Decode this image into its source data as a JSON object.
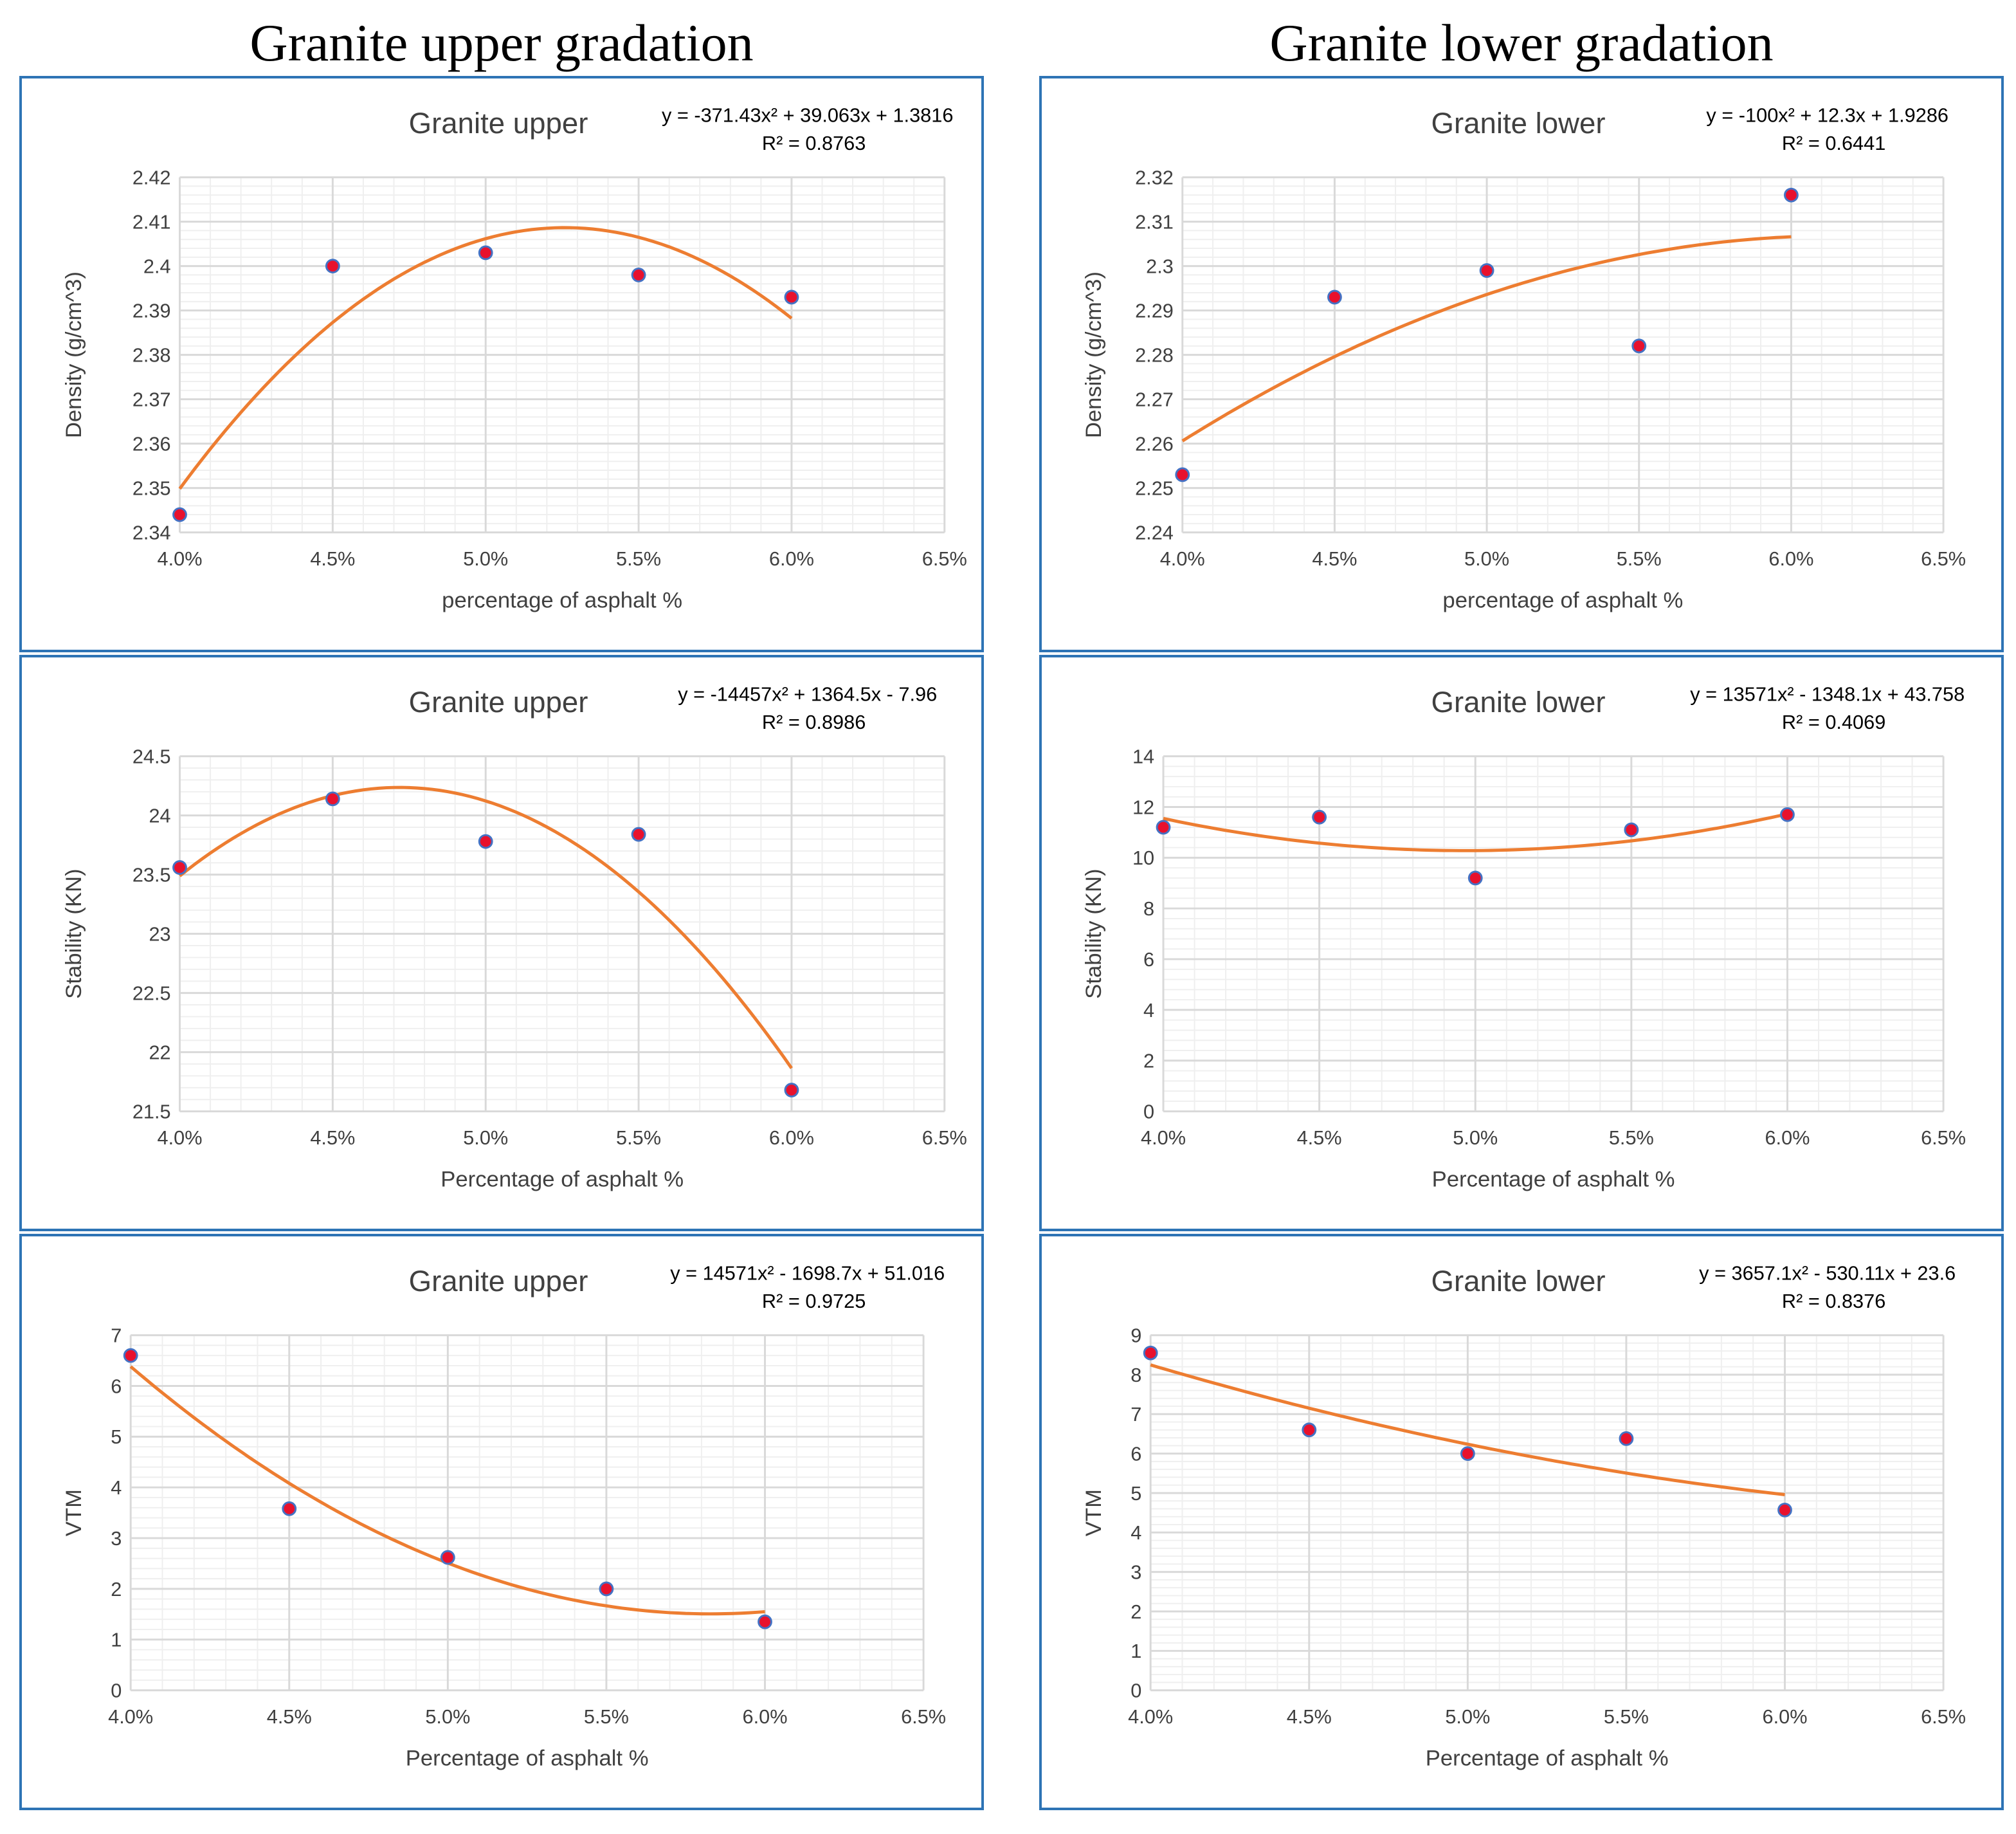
{
  "column_titles": {
    "left": "Granite upper gradation",
    "right": "Granite lower gradation"
  },
  "colors": {
    "panel_border": "#2e74b5",
    "trend_line": "#ed7d31",
    "marker_fill": "#e8112d",
    "marker_edge": "#4472c4",
    "grid_major": "#d9d9d9",
    "grid_minor": "#efefef"
  },
  "chart_data": [
    {
      "type": "scatter",
      "title": "Granite upper",
      "equation": "y = -371.43x² + 39.063x + 1.3816",
      "r2": "R² = 0.8763",
      "xlabel": "percentage of asphalt %",
      "ylabel": "Density  (g/cm^3)",
      "x_ticks": [
        "4.0%",
        "4.5%",
        "5.0%",
        "5.5%",
        "6.0%",
        "6.5%"
      ],
      "y_ticks": [
        "2.34",
        "2.35",
        "2.36",
        "2.37",
        "2.38",
        "2.39",
        "2.4",
        "2.41",
        "2.42"
      ],
      "xlim": [
        0.04,
        0.065
      ],
      "ylim": [
        2.34,
        2.42
      ],
      "x": [
        0.04,
        0.045,
        0.05,
        0.055,
        0.06
      ],
      "y": [
        2.344,
        2.4,
        2.403,
        2.398,
        2.393
      ],
      "trend": {
        "a": -371.43,
        "b": 39.063,
        "c": 1.3816,
        "x_range": [
          0.04,
          0.06
        ]
      }
    },
    {
      "type": "scatter",
      "title": "Granite lower",
      "equation": "y = -100x² + 12.3x + 1.9286",
      "r2": "R² = 0.6441",
      "xlabel": "percentage of asphalt %",
      "ylabel": "Density  (g/cm^3)",
      "x_ticks": [
        "4.0%",
        "4.5%",
        "5.0%",
        "5.5%",
        "6.0%",
        "6.5%"
      ],
      "y_ticks": [
        "2.24",
        "2.25",
        "2.26",
        "2.27",
        "2.28",
        "2.29",
        "2.3",
        "2.31",
        "2.32"
      ],
      "xlim": [
        0.04,
        0.065
      ],
      "ylim": [
        2.24,
        2.32
      ],
      "x": [
        0.04,
        0.045,
        0.05,
        0.055,
        0.06
      ],
      "y": [
        2.253,
        2.293,
        2.299,
        2.282,
        2.316
      ],
      "trend": {
        "a": -100,
        "b": 12.3,
        "c": 1.9286,
        "x_range": [
          0.04,
          0.06
        ]
      }
    },
    {
      "type": "scatter",
      "title": "Granite upper",
      "equation": "y = -14457x² + 1364.5x - 7.96",
      "r2": "R² = 0.8986",
      "xlabel": "Percentage of asphalt %",
      "ylabel": "Stability (KN)",
      "x_ticks": [
        "4.0%",
        "4.5%",
        "5.0%",
        "5.5%",
        "6.0%",
        "6.5%"
      ],
      "y_ticks": [
        "21.5",
        "22",
        "22.5",
        "23",
        "23.5",
        "24",
        "24.5"
      ],
      "xlim": [
        0.04,
        0.065
      ],
      "ylim": [
        21.5,
        24.5
      ],
      "x": [
        0.04,
        0.045,
        0.05,
        0.055,
        0.06
      ],
      "y": [
        23.56,
        24.14,
        23.78,
        23.84,
        21.68
      ],
      "trend": {
        "a": -14457,
        "b": 1364.5,
        "c": -7.96,
        "x_range": [
          0.04,
          0.06
        ]
      }
    },
    {
      "type": "scatter",
      "title": "Granite lower",
      "equation": "y = 13571x² - 1348.1x + 43.758",
      "r2": "R² = 0.4069",
      "xlabel": "Percentage of asphalt %",
      "ylabel": "Stability (KN)",
      "x_ticks": [
        "4.0%",
        "4.5%",
        "5.0%",
        "5.5%",
        "6.0%",
        "6.5%"
      ],
      "y_ticks": [
        "0",
        "2",
        "4",
        "6",
        "8",
        "10",
        "12",
        "14"
      ],
      "xlim": [
        0.04,
        0.065
      ],
      "ylim": [
        0,
        14
      ],
      "x": [
        0.04,
        0.045,
        0.05,
        0.055,
        0.06
      ],
      "y": [
        11.2,
        11.6,
        9.2,
        11.1,
        11.7
      ],
      "trend": {
        "a": 13571,
        "b": -1348.1,
        "c": 43.758,
        "x_range": [
          0.04,
          0.06
        ]
      }
    },
    {
      "type": "scatter",
      "title": "Granite upper",
      "equation": "y = 14571x² - 1698.7x + 51.016",
      "r2": "R² = 0.9725",
      "xlabel": "Percentage of asphalt %",
      "ylabel": "VTM",
      "x_ticks": [
        "4.0%",
        "4.5%",
        "5.0%",
        "5.5%",
        "6.0%",
        "6.5%"
      ],
      "y_ticks": [
        "0",
        "1",
        "2",
        "3",
        "4",
        "5",
        "6",
        "7"
      ],
      "xlim": [
        0.04,
        0.065
      ],
      "ylim": [
        0,
        7
      ],
      "x": [
        0.04,
        0.045,
        0.05,
        0.055,
        0.06
      ],
      "y": [
        6.6,
        3.58,
        2.62,
        2.0,
        1.35
      ],
      "trend": {
        "a": 14571,
        "b": -1698.7,
        "c": 51.016,
        "x_range": [
          0.04,
          0.06
        ]
      }
    },
    {
      "type": "scatter",
      "title": "Granite lower",
      "equation": "y = 3657.1x² - 530.11x + 23.6",
      "r2": "R² = 0.8376",
      "xlabel": "Percentage of asphalt %",
      "ylabel": "VTM",
      "x_ticks": [
        "4.0%",
        "4.5%",
        "5.0%",
        "5.5%",
        "6.0%",
        "6.5%"
      ],
      "y_ticks": [
        "0",
        "1",
        "2",
        "3",
        "4",
        "5",
        "6",
        "7",
        "8",
        "9"
      ],
      "xlim": [
        0.04,
        0.065
      ],
      "ylim": [
        0,
        9
      ],
      "x": [
        0.04,
        0.045,
        0.05,
        0.055,
        0.06
      ],
      "y": [
        8.55,
        6.6,
        6.0,
        6.38,
        4.57
      ],
      "trend": {
        "a": 3657.1,
        "b": -530.11,
        "c": 23.6,
        "x_range": [
          0.04,
          0.06
        ]
      }
    }
  ]
}
